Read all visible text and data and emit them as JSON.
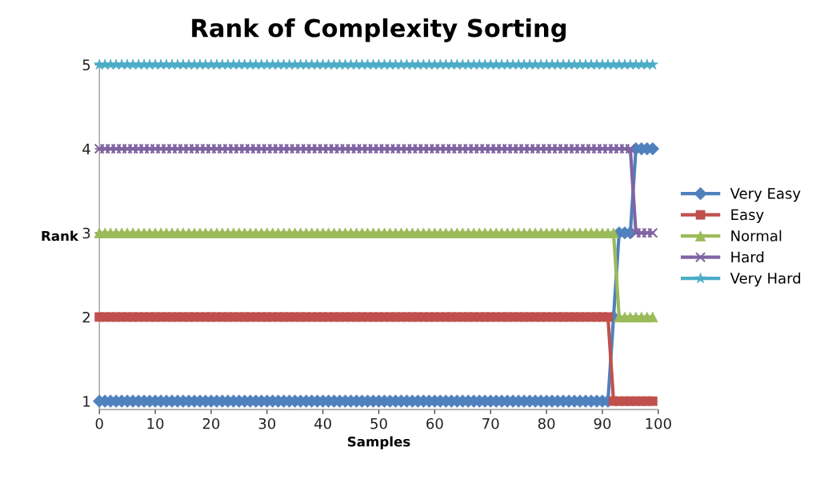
{
  "chart_data": {
    "type": "line",
    "title": "Rank of Complexity Sorting",
    "xlabel": "Samples",
    "ylabel": "Rank",
    "xlim": [
      0,
      100
    ],
    "xticks": [
      0,
      10,
      20,
      30,
      40,
      50,
      60,
      70,
      80,
      90,
      100
    ],
    "ylim": [
      0.9,
      5
    ],
    "yticks": [
      1,
      2,
      3,
      4,
      5
    ],
    "grid": false,
    "legend": "right",
    "line_style": "solid",
    "x": [
      0,
      1,
      2,
      3,
      4,
      5,
      6,
      7,
      8,
      9,
      10,
      11,
      12,
      13,
      14,
      15,
      16,
      17,
      18,
      19,
      20,
      21,
      22,
      23,
      24,
      25,
      26,
      27,
      28,
      29,
      30,
      31,
      32,
      33,
      34,
      35,
      36,
      37,
      38,
      39,
      40,
      41,
      42,
      43,
      44,
      45,
      46,
      47,
      48,
      49,
      50,
      51,
      52,
      53,
      54,
      55,
      56,
      57,
      58,
      59,
      60,
      61,
      62,
      63,
      64,
      65,
      66,
      67,
      68,
      69,
      70,
      71,
      72,
      73,
      74,
      75,
      76,
      77,
      78,
      79,
      80,
      81,
      82,
      83,
      84,
      85,
      86,
      87,
      88,
      89,
      90,
      91,
      92,
      93,
      94,
      95,
      96,
      97,
      98,
      99
    ],
    "series": [
      {
        "name": "Very Easy",
        "color": "#4f81bd",
        "marker": "diamond",
        "values": [
          1,
          1,
          1,
          1,
          1,
          1,
          1,
          1,
          1,
          1,
          1,
          1,
          1,
          1,
          1,
          1,
          1,
          1,
          1,
          1,
          1,
          1,
          1,
          1,
          1,
          1,
          1,
          1,
          1,
          1,
          1,
          1,
          1,
          1,
          1,
          1,
          1,
          1,
          1,
          1,
          1,
          1,
          1,
          1,
          1,
          1,
          1,
          1,
          1,
          1,
          1,
          1,
          1,
          1,
          1,
          1,
          1,
          1,
          1,
          1,
          1,
          1,
          1,
          1,
          1,
          1,
          1,
          1,
          1,
          1,
          1,
          1,
          1,
          1,
          1,
          1,
          1,
          1,
          1,
          1,
          1,
          1,
          1,
          1,
          1,
          1,
          1,
          1,
          1,
          1,
          1,
          1,
          2,
          3,
          3,
          3,
          4,
          4,
          4,
          4
        ]
      },
      {
        "name": "Easy",
        "color": "#c0504d",
        "marker": "square",
        "values": [
          2,
          2,
          2,
          2,
          2,
          2,
          2,
          2,
          2,
          2,
          2,
          2,
          2,
          2,
          2,
          2,
          2,
          2,
          2,
          2,
          2,
          2,
          2,
          2,
          2,
          2,
          2,
          2,
          2,
          2,
          2,
          2,
          2,
          2,
          2,
          2,
          2,
          2,
          2,
          2,
          2,
          2,
          2,
          2,
          2,
          2,
          2,
          2,
          2,
          2,
          2,
          2,
          2,
          2,
          2,
          2,
          2,
          2,
          2,
          2,
          2,
          2,
          2,
          2,
          2,
          2,
          2,
          2,
          2,
          2,
          2,
          2,
          2,
          2,
          2,
          2,
          2,
          2,
          2,
          2,
          2,
          2,
          2,
          2,
          2,
          2,
          2,
          2,
          2,
          2,
          2,
          2,
          1,
          1,
          1,
          1,
          1,
          1,
          1,
          1
        ]
      },
      {
        "name": "Normal",
        "color": "#9bbb59",
        "marker": "triangle",
        "values": [
          3,
          3,
          3,
          3,
          3,
          3,
          3,
          3,
          3,
          3,
          3,
          3,
          3,
          3,
          3,
          3,
          3,
          3,
          3,
          3,
          3,
          3,
          3,
          3,
          3,
          3,
          3,
          3,
          3,
          3,
          3,
          3,
          3,
          3,
          3,
          3,
          3,
          3,
          3,
          3,
          3,
          3,
          3,
          3,
          3,
          3,
          3,
          3,
          3,
          3,
          3,
          3,
          3,
          3,
          3,
          3,
          3,
          3,
          3,
          3,
          3,
          3,
          3,
          3,
          3,
          3,
          3,
          3,
          3,
          3,
          3,
          3,
          3,
          3,
          3,
          3,
          3,
          3,
          3,
          3,
          3,
          3,
          3,
          3,
          3,
          3,
          3,
          3,
          3,
          3,
          3,
          3,
          3,
          2,
          2,
          2,
          2,
          2,
          2,
          2
        ]
      },
      {
        "name": "Hard",
        "color": "#8064a2",
        "marker": "cross",
        "values": [
          4,
          4,
          4,
          4,
          4,
          4,
          4,
          4,
          4,
          4,
          4,
          4,
          4,
          4,
          4,
          4,
          4,
          4,
          4,
          4,
          4,
          4,
          4,
          4,
          4,
          4,
          4,
          4,
          4,
          4,
          4,
          4,
          4,
          4,
          4,
          4,
          4,
          4,
          4,
          4,
          4,
          4,
          4,
          4,
          4,
          4,
          4,
          4,
          4,
          4,
          4,
          4,
          4,
          4,
          4,
          4,
          4,
          4,
          4,
          4,
          4,
          4,
          4,
          4,
          4,
          4,
          4,
          4,
          4,
          4,
          4,
          4,
          4,
          4,
          4,
          4,
          4,
          4,
          4,
          4,
          4,
          4,
          4,
          4,
          4,
          4,
          4,
          4,
          4,
          4,
          4,
          4,
          4,
          4,
          4,
          4,
          3,
          3,
          3,
          3
        ]
      },
      {
        "name": "Very Hard",
        "color": "#4bacc6",
        "marker": "star",
        "values": [
          5,
          5,
          5,
          5,
          5,
          5,
          5,
          5,
          5,
          5,
          5,
          5,
          5,
          5,
          5,
          5,
          5,
          5,
          5,
          5,
          5,
          5,
          5,
          5,
          5,
          5,
          5,
          5,
          5,
          5,
          5,
          5,
          5,
          5,
          5,
          5,
          5,
          5,
          5,
          5,
          5,
          5,
          5,
          5,
          5,
          5,
          5,
          5,
          5,
          5,
          5,
          5,
          5,
          5,
          5,
          5,
          5,
          5,
          5,
          5,
          5,
          5,
          5,
          5,
          5,
          5,
          5,
          5,
          5,
          5,
          5,
          5,
          5,
          5,
          5,
          5,
          5,
          5,
          5,
          5,
          5,
          5,
          5,
          5,
          5,
          5,
          5,
          5,
          5,
          5,
          5,
          5,
          5,
          5,
          5,
          5,
          5,
          5,
          5,
          5
        ]
      }
    ]
  }
}
